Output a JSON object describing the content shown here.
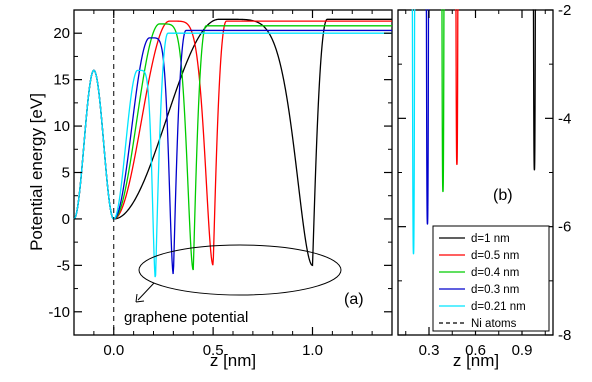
{
  "chart_data": [
    {
      "panel": "a",
      "type": "line",
      "label": "(a)",
      "xlabel": "z [nm]",
      "ylabel": "Potential energy [eV]",
      "xlim": [
        -0.2,
        1.4
      ],
      "ylim": [
        -12.5,
        22.5
      ],
      "xticks": [
        0.0,
        0.5,
        1.0
      ],
      "xtick_labels": [
        "0.0",
        "0.5",
        "1.0"
      ],
      "yticks": [
        -10,
        -5,
        0,
        5,
        10,
        15,
        20
      ],
      "ytick_labels": [
        "-10",
        "-5",
        "0",
        "5",
        "10",
        "15",
        "20"
      ],
      "grid": false,
      "legend_position": "lower-right",
      "annotation": "graphene potential",
      "ni_atoms_line_z": 0.0,
      "series": [
        {
          "name": "d=1 nm",
          "color": "#000000",
          "well_z": 1.0,
          "well_min": -5.0,
          "barrier_z": 0.53,
          "barrier_max": 21.5,
          "plateau": 21.5
        },
        {
          "name": "d=0.5 nm",
          "color": "#ff0000",
          "well_z": 0.5,
          "well_min": -5.0,
          "barrier_z": 0.28,
          "barrier_max": 21.3,
          "plateau": 21.3
        },
        {
          "name": "d=0.4 nm",
          "color": "#00cc00",
          "well_z": 0.4,
          "well_min": -5.5,
          "barrier_z": 0.23,
          "barrier_max": 21.0,
          "plateau": 20.8
        },
        {
          "name": "d=0.3 nm",
          "color": "#0000cc",
          "well_z": 0.3,
          "well_min": -6.0,
          "barrier_z": 0.18,
          "barrier_max": 19.5,
          "plateau": 20.3
        },
        {
          "name": "d=0.21 nm",
          "color": "#00e5ff",
          "well_z": 0.21,
          "well_min": -6.5,
          "barrier_z": 0.12,
          "barrier_max": 16.0,
          "plateau": 20.0
        }
      ],
      "shared_curve": {
        "min_at_z": -0.2,
        "min_value": 0.0,
        "peak_z": -0.1,
        "peak_value": 16.0,
        "node_z": 0.0,
        "node_value": 0.0
      }
    },
    {
      "panel": "b",
      "type": "line",
      "label": "(b)",
      "xlabel": "z [nm]",
      "xlim": [
        0.1,
        1.1
      ],
      "ylim": [
        -8,
        -2
      ],
      "xticks": [
        0.3,
        0.6,
        0.9
      ],
      "xtick_labels": [
        "0.3",
        "0.6",
        "0.9"
      ],
      "yticks": [
        -8,
        -6,
        -4,
        -2
      ],
      "ytick_labels": [
        "-8",
        "-6",
        "-4",
        "-2"
      ],
      "y_axis_side": "right",
      "grid": false,
      "series": [
        {
          "name": "d=1 nm",
          "color": "#000000",
          "well_z": 0.98,
          "well_min": -4.95
        },
        {
          "name": "d=0.5 nm",
          "color": "#ff0000",
          "well_z": 0.48,
          "well_min": -4.85
        },
        {
          "name": "d=0.4 nm",
          "color": "#00cc00",
          "well_z": 0.39,
          "well_min": -5.35
        },
        {
          "name": "d=0.3 nm",
          "color": "#0000cc",
          "well_z": 0.29,
          "well_min": -5.95
        },
        {
          "name": "d=0.21 nm",
          "color": "#00e5ff",
          "well_z": 0.2,
          "well_min": -6.5
        }
      ]
    }
  ],
  "legend": {
    "entries": [
      {
        "label": "d=1 nm",
        "color": "#000000",
        "dashed": false
      },
      {
        "label": "d=0.5 nm",
        "color": "#ff0000",
        "dashed": false
      },
      {
        "label": "d=0.4 nm",
        "color": "#00cc00",
        "dashed": false
      },
      {
        "label": "d=0.3 nm",
        "color": "#0000cc",
        "dashed": false
      },
      {
        "label": "d=0.21 nm",
        "color": "#00e5ff",
        "dashed": false
      },
      {
        "label": "Ni atoms",
        "color": "#000000",
        "dashed": true
      }
    ]
  }
}
